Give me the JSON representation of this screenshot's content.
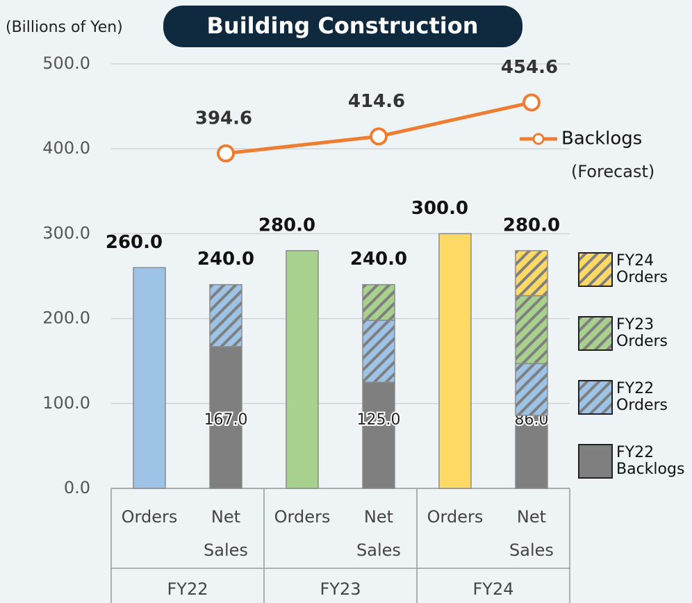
{
  "chart_data": {
    "type": "bar",
    "title": "Building Construction",
    "y_label": "(Billions of Yen)",
    "annotation": "(Forecast)",
    "categories": [
      "Orders",
      "Net Sales",
      "Orders",
      "Net Sales",
      "Orders",
      "Net Sales"
    ],
    "groups": [
      "FY22",
      "FY23",
      "FY24"
    ],
    "series": [
      {
        "name": "FY22 Backlogs",
        "color": "#7f7f7f",
        "values": [
          null,
          167,
          null,
          125,
          null,
          86
        ],
        "value_labels": [
          null,
          "167.0",
          null,
          "125.0",
          null,
          "86.0"
        ]
      },
      {
        "name": "FY22 Orders",
        "color": "#9dc3e6",
        "values": [
          260,
          73,
          null,
          73,
          null,
          61
        ]
      },
      {
        "name": "FY23 Orders",
        "color": "#a9d18e",
        "values": [
          null,
          null,
          280,
          42,
          null,
          80
        ]
      },
      {
        "name": "FY24 Orders",
        "color": "#ffd966",
        "values": [
          null,
          null,
          null,
          null,
          300,
          53
        ]
      },
      {
        "name": "Backlogs",
        "type": "line",
        "color": "#ed7d31",
        "values": [
          null,
          394.6,
          null,
          414.6,
          null,
          454.6
        ],
        "value_labels": [
          null,
          "394.6",
          null,
          "414.6",
          null,
          "454.6"
        ]
      }
    ],
    "totals": {
      "values": [
        260,
        240,
        280,
        240,
        300,
        280
      ],
      "value_labels": [
        "260.0",
        "240.0",
        "280.0",
        "240.0",
        "300.0",
        "280.0"
      ]
    },
    "ylim": [
      0,
      500
    ],
    "yticks": [
      {
        "value": 0,
        "label": "0.0"
      },
      {
        "value": 100,
        "label": "100.0"
      },
      {
        "value": 200,
        "label": "200.0"
      },
      {
        "value": 300,
        "label": "300.0"
      },
      {
        "value": 400,
        "label": "400.0"
      },
      {
        "value": 500,
        "label": "500.0"
      }
    ],
    "grid": true
  }
}
